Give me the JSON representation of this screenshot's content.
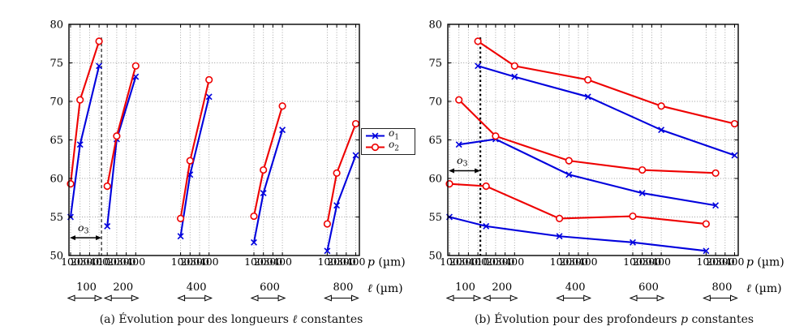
{
  "figure": {
    "legend": {
      "entries": [
        {
          "label_var": "o",
          "label_sub": "1"
        },
        {
          "label_var": "o",
          "label_sub": "2"
        }
      ]
    },
    "captions": {
      "a": {
        "pre": "(a) Évolution pour des longueurs ",
        "var": "ℓ",
        "post": " constantes"
      },
      "b": {
        "pre": "(b) Évolution pour des profondeurs ",
        "var": "p",
        "post": " constantes"
      }
    },
    "axis_labels": {
      "x_var": "p",
      "x_unit": " (µm)",
      "x2_var": "ℓ",
      "x2_unit": " (µm)"
    }
  },
  "chart_data": [
    {
      "id": "panel-a",
      "type": "line",
      "layout": "grouped-by-l",
      "title": "(a) Évolution pour des longueurs ℓ constantes",
      "xlabel": "p (µm)",
      "secondary_xlabel": "ℓ (µm)",
      "ylim": [
        50,
        80
      ],
      "yticks": [
        50,
        55,
        60,
        65,
        70,
        75,
        80
      ],
      "grid": true,
      "l_groups": [
        100,
        200,
        400,
        600,
        800
      ],
      "p_points": [
        100,
        200,
        400
      ],
      "p_axis_ticks": [
        100,
        200,
        300,
        400
      ],
      "series": [
        {
          "name": "o1",
          "color": "#0000dd",
          "marker": "x",
          "values_by_group": [
            [
              55.0,
              64.4,
              74.6
            ],
            [
              53.8,
              65.1,
              73.2
            ],
            [
              52.5,
              60.5,
              70.6
            ],
            [
              51.7,
              58.1,
              66.3
            ],
            [
              50.6,
              56.5,
              63.0
            ]
          ]
        },
        {
          "name": "o2",
          "color": "#ee0000",
          "marker": "circle",
          "values_by_group": [
            [
              59.3,
              70.2,
              77.8
            ],
            [
              59.0,
              65.5,
              74.6
            ],
            [
              54.8,
              62.3,
              72.8
            ],
            [
              55.1,
              61.1,
              69.4
            ],
            [
              54.1,
              60.7,
              67.1
            ]
          ]
        }
      ],
      "annotation": {
        "label_var": "o",
        "label_sub": "3",
        "text_y": 53.6,
        "arrow_y": 52.3,
        "dash_top_y": 78.3,
        "dash_thick": false
      }
    },
    {
      "id": "panel-b",
      "type": "line",
      "layout": "curves-across-l",
      "title": "(b) Évolution pour des profondeurs p constantes",
      "xlabel": "p (µm)",
      "secondary_xlabel": "ℓ (µm)",
      "ylim": [
        50,
        80
      ],
      "yticks": [
        50,
        55,
        60,
        65,
        70,
        75,
        80
      ],
      "grid": true,
      "l_groups": [
        100,
        200,
        400,
        600,
        800
      ],
      "p_points": [
        100,
        200,
        400
      ],
      "p_axis_ticks": [
        100,
        200,
        300,
        400
      ],
      "series": [
        {
          "name": "o1",
          "p": 100,
          "color": "#0000dd",
          "marker": "x",
          "values": [
            55.0,
            53.8,
            52.5,
            51.7,
            50.6
          ]
        },
        {
          "name": "o1",
          "p": 200,
          "color": "#0000dd",
          "marker": "x",
          "values": [
            64.4,
            65.1,
            60.5,
            58.1,
            56.5
          ]
        },
        {
          "name": "o1",
          "p": 400,
          "color": "#0000dd",
          "marker": "x",
          "values": [
            74.6,
            73.2,
            70.6,
            66.3,
            63.0
          ]
        },
        {
          "name": "o2",
          "p": 100,
          "color": "#ee0000",
          "marker": "circle",
          "values": [
            59.3,
            59.0,
            54.8,
            55.1,
            54.1
          ]
        },
        {
          "name": "o2",
          "p": 200,
          "color": "#ee0000",
          "marker": "circle",
          "values": [
            70.2,
            65.5,
            62.3,
            61.1,
            60.7
          ]
        },
        {
          "name": "o2",
          "p": 400,
          "color": "#ee0000",
          "marker": "circle",
          "values": [
            77.8,
            74.6,
            72.8,
            69.4,
            67.1
          ]
        }
      ],
      "annotation": {
        "label_var": "o",
        "label_sub": "3",
        "text_y": 62.3,
        "arrow_y": 61.0,
        "dash_top_y": 78.3,
        "dash_thick": true
      }
    }
  ]
}
